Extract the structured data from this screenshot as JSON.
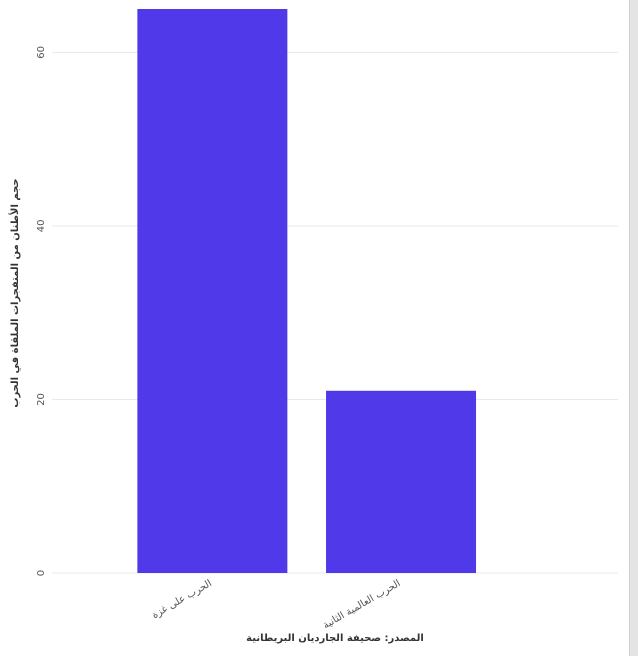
{
  "chart_data": {
    "type": "bar",
    "categories": [
      "الحرب على غزة",
      "الحرب العالمية الثانية"
    ],
    "values": [
      65,
      21
    ],
    "xlabel": "المصدر: صحيفة الجارديان البريطانية",
    "ylabel": "حجم الأطنان من المتفجرات الملقاة في الحرب",
    "ylim": [
      0,
      65
    ],
    "yticks": [
      0,
      20,
      40,
      60
    ],
    "grid": true,
    "bar_color": "#4f39e8",
    "gridline_color": "#e9e9e9",
    "axis_text_color": "#555555"
  }
}
